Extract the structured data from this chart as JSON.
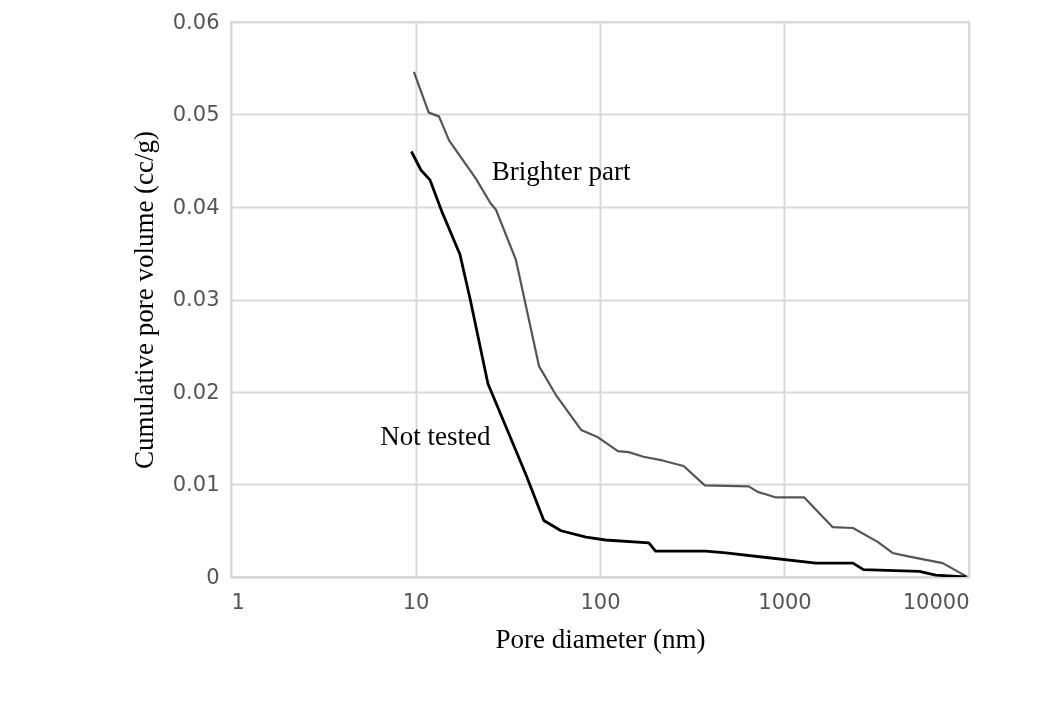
{
  "chart_data": {
    "type": "line",
    "xlabel": "Pore diameter (nm)",
    "ylabel": "Cumulative pore volume (cc/g)",
    "log": "x",
    "grid": true,
    "xlim": [
      1,
      10000
    ],
    "xticks": [
      1,
      10,
      100,
      1000,
      10000
    ],
    "ylim": [
      0,
      0.06
    ],
    "yticks": [
      0,
      0.01,
      0.02,
      0.03,
      0.04,
      0.05,
      0.06
    ],
    "series": [
      {
        "name": "Brighter part",
        "color": "#555555",
        "x": [
          9.8,
          11.8,
          13.4,
          15.2,
          21.2,
          25.5,
          27.3,
          35,
          46.7,
          57.6,
          79,
          97.6,
          125,
          143,
          172,
          218,
          284,
          370,
          640,
          716,
          900,
          1280,
          1820,
          2350,
          3200,
          3850,
          4760,
          7200,
          8850,
          9800
        ],
        "values": [
          0.0546,
          0.0502,
          0.0498,
          0.0472,
          0.0431,
          0.0404,
          0.0397,
          0.0343,
          0.0228,
          0.0197,
          0.0159,
          0.0151,
          0.0136,
          0.0135,
          0.013,
          0.0126,
          0.012,
          0.0099,
          0.0098,
          0.0092,
          0.0086,
          0.0086,
          0.0054,
          0.0053,
          0.0038,
          0.0026,
          0.0022,
          0.0015,
          0.0005,
          0
        ]
      },
      {
        "name": "Not tested",
        "color": "#000000",
        "x": [
          9.5,
          10.7,
          12,
          13.9,
          17.4,
          19.8,
          24.7,
          31.9,
          39.8,
          49.6,
          61.5,
          84,
          107,
          184,
          200,
          375,
          481,
          1480,
          2350,
          2680,
          5380,
          6600,
          9600
        ],
        "values": [
          0.046,
          0.044,
          0.0429,
          0.0395,
          0.0349,
          0.03,
          0.0209,
          0.0156,
          0.011,
          0.0061,
          0.005,
          0.0043,
          0.004,
          0.0037,
          0.0028,
          0.0028,
          0.0026,
          0.0015,
          0.0015,
          0.0008,
          0.0006,
          0.0002,
          0
        ]
      }
    ]
  }
}
